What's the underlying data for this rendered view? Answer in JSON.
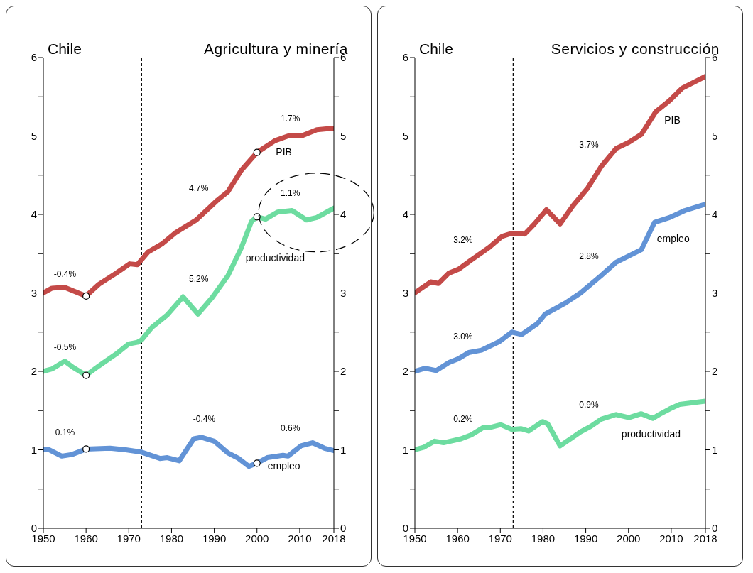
{
  "chart_data": [
    {
      "type": "line",
      "title": "Chile",
      "subtitle": "Agricultura y minería",
      "xlim": [
        1950,
        2018
      ],
      "xticks": [
        1950,
        1960,
        1970,
        1980,
        1990,
        2000,
        2010,
        2018
      ],
      "ylim": [
        0,
        6
      ],
      "yticks": [
        0,
        {
          "value": 0.5,
          "label": null
        },
        1,
        {
          "value": 1.5,
          "label": null
        },
        2,
        {
          "value": 2.5,
          "label": null
        },
        3,
        {
          "value": 3.5,
          "label": null
        },
        4,
        {
          "value": 4.5,
          "label": null
        },
        5,
        {
          "value": 5.5,
          "label": null
        },
        6
      ],
      "y2lim": [
        0,
        6
      ],
      "y2ticks": [
        0,
        {
          "value": 0.5,
          "label": null
        },
        1,
        {
          "value": 1.5,
          "label": null
        },
        2,
        {
          "value": 2.5,
          "label": null
        },
        3,
        {
          "value": 3.5,
          "label": null
        },
        4,
        {
          "value": 4.5,
          "label": null
        },
        5,
        {
          "value": 5.5,
          "label": null
        },
        6
      ],
      "series": [
        {
          "name": "PIB",
          "color": "#c44a48",
          "x": [
            1950,
            1952,
            1955,
            1960,
            1963,
            1967,
            1970.2,
            1972,
            1974.5,
            1977.9,
            1981,
            1985.8,
            1990.7,
            1993.2,
            1996.3,
            2000,
            2004.2,
            2007.3,
            2010.4,
            2014,
            2018
          ],
          "values": [
            3.0,
            3.06,
            3.07,
            2.96,
            3.11,
            3.25,
            3.37,
            3.36,
            3.52,
            3.63,
            3.77,
            3.93,
            4.18,
            4.29,
            4.56,
            4.79,
            4.94,
            5.0,
            5.0,
            5.08,
            5.1
          ]
        },
        {
          "name": "productividad",
          "color": "#6ddca0",
          "x": [
            1950,
            1952,
            1955,
            1957,
            1960,
            1963,
            1967,
            1970,
            1972,
            1973,
            1975.4,
            1979,
            1982.7,
            1986.2,
            1989.5,
            1993.2,
            1996.3,
            1998.7,
            2000,
            2002,
            2004.8,
            2008.2,
            2011.6,
            2014,
            2018
          ],
          "values": [
            2.0,
            2.03,
            2.13,
            2.05,
            1.95,
            2.07,
            2.22,
            2.35,
            2.37,
            2.4,
            2.56,
            2.72,
            2.95,
            2.73,
            2.94,
            3.22,
            3.57,
            3.91,
            3.97,
            3.94,
            4.03,
            4.05,
            3.93,
            3.96,
            4.08
          ]
        },
        {
          "name": "empleo",
          "color": "#6293d6",
          "x": [
            1950,
            1951,
            1954.3,
            1956.7,
            1960,
            1965.6,
            1969.3,
            1973,
            1977.3,
            1979,
            1981.8,
            1985.2,
            1987,
            1990,
            1993.2,
            1995.7,
            1998.1,
            2000,
            2002.4,
            2006.1,
            2007.3,
            2010.3,
            2013,
            2015.8,
            2018
          ],
          "values": [
            1.0,
            1.01,
            0.92,
            0.94,
            1.01,
            1.02,
            1.0,
            0.97,
            0.89,
            0.9,
            0.86,
            1.14,
            1.16,
            1.11,
            0.96,
            0.89,
            0.79,
            0.83,
            0.9,
            0.93,
            0.92,
            1.05,
            1.09,
            1.02,
            0.99
          ]
        },
        {
          "type": "scatter",
          "color": "#ffffff",
          "x": [
            1960,
            2000,
            1960,
            2000,
            1960,
            2000
          ],
          "values": [
            2.96,
            4.79,
            1.95,
            3.97,
            1.01,
            0.83
          ]
        }
      ],
      "ref_lines": [
        {
          "axis": "x",
          "value": 1973,
          "line_style": "dashed"
        }
      ],
      "annotations": [
        "-0.4%",
        "-0.5%",
        "0.1%",
        "4.7%",
        "5.2%",
        "-0.4%",
        "1.7%",
        "1.1%",
        "0.6%"
      ]
    },
    {
      "type": "line",
      "title": "Chile",
      "subtitle": "Servicios y construcción",
      "xlim": [
        1950,
        2018
      ],
      "xticks": [
        1950,
        1960,
        1970,
        1980,
        1990,
        2000,
        2010,
        2018
      ],
      "ylim": [
        0,
        6
      ],
      "yticks": [
        0,
        {
          "value": 0.5,
          "label": null
        },
        1,
        {
          "value": 1.5,
          "label": null
        },
        2,
        {
          "value": 2.5,
          "label": null
        },
        3,
        {
          "value": 3.5,
          "label": null
        },
        4,
        {
          "value": 4.5,
          "label": null
        },
        5,
        {
          "value": 5.5,
          "label": null
        },
        6
      ],
      "y2lim": [
        0,
        6
      ],
      "y2ticks": [
        0,
        {
          "value": 0.5,
          "label": null
        },
        1,
        {
          "value": 1.5,
          "label": null
        },
        2,
        {
          "value": 2.5,
          "label": null
        },
        3,
        {
          "value": 3.5,
          "label": null
        },
        4,
        {
          "value": 4.5,
          "label": null
        },
        5,
        {
          "value": 5.5,
          "label": null
        },
        6
      ],
      "series": [
        {
          "name": "PIB",
          "color": "#c44a48",
          "x": [
            1950,
            1953.7,
            1955.5,
            1957.9,
            1960.2,
            1963.2,
            1967.4,
            1970.4,
            1972.7,
            1975.7,
            1978,
            1980.8,
            1984,
            1987,
            1990.5,
            1993.6,
            1997.1,
            2000.1,
            2003,
            2006.4,
            2009.6,
            2012.6,
            2018
          ],
          "values": [
            3.0,
            3.14,
            3.12,
            3.25,
            3.3,
            3.42,
            3.58,
            3.72,
            3.76,
            3.75,
            3.88,
            4.06,
            3.88,
            4.11,
            4.34,
            4.61,
            4.84,
            4.92,
            5.02,
            5.31,
            5.45,
            5.61,
            5.76
          ]
        },
        {
          "name": "empleo",
          "color": "#6293d6",
          "x": [
            1950,
            1952.4,
            1955,
            1957.9,
            1960.2,
            1962.6,
            1965.6,
            1969.8,
            1972.7,
            1975,
            1978.7,
            1980.5,
            1985.2,
            1988.8,
            1993.6,
            1997.1,
            2003,
            2006.1,
            2009.6,
            2013.2,
            2018
          ],
          "values": [
            2.0,
            2.04,
            2.01,
            2.11,
            2.16,
            2.24,
            2.27,
            2.38,
            2.5,
            2.47,
            2.61,
            2.73,
            2.87,
            3.0,
            3.22,
            3.39,
            3.55,
            3.9,
            3.96,
            4.05,
            4.13
          ]
        },
        {
          "name": "productividad",
          "color": "#6ddca0",
          "x": [
            1950,
            1952,
            1954.6,
            1956.7,
            1960.8,
            1963.2,
            1965.9,
            1968,
            1970.1,
            1972.7,
            1974.8,
            1976.6,
            1979.9,
            1981.1,
            1984,
            1986.4,
            1988.8,
            1991.2,
            1993.6,
            1997.1,
            2000.1,
            2003,
            2005.7,
            2007.2,
            2009.6,
            2012,
            2015,
            2018
          ],
          "values": [
            1.0,
            1.03,
            1.11,
            1.09,
            1.14,
            1.19,
            1.28,
            1.29,
            1.32,
            1.26,
            1.27,
            1.24,
            1.36,
            1.33,
            1.05,
            1.14,
            1.23,
            1.3,
            1.39,
            1.45,
            1.41,
            1.46,
            1.4,
            1.45,
            1.52,
            1.58,
            1.6,
            1.62
          ]
        }
      ],
      "ref_lines": [
        {
          "axis": "x",
          "value": 1973,
          "line_style": "dashed"
        }
      ],
      "annotations": [
        "3.2%",
        "3.0%",
        "0.2%",
        "3.7%",
        "2.8%",
        "0.9%"
      ]
    }
  ]
}
